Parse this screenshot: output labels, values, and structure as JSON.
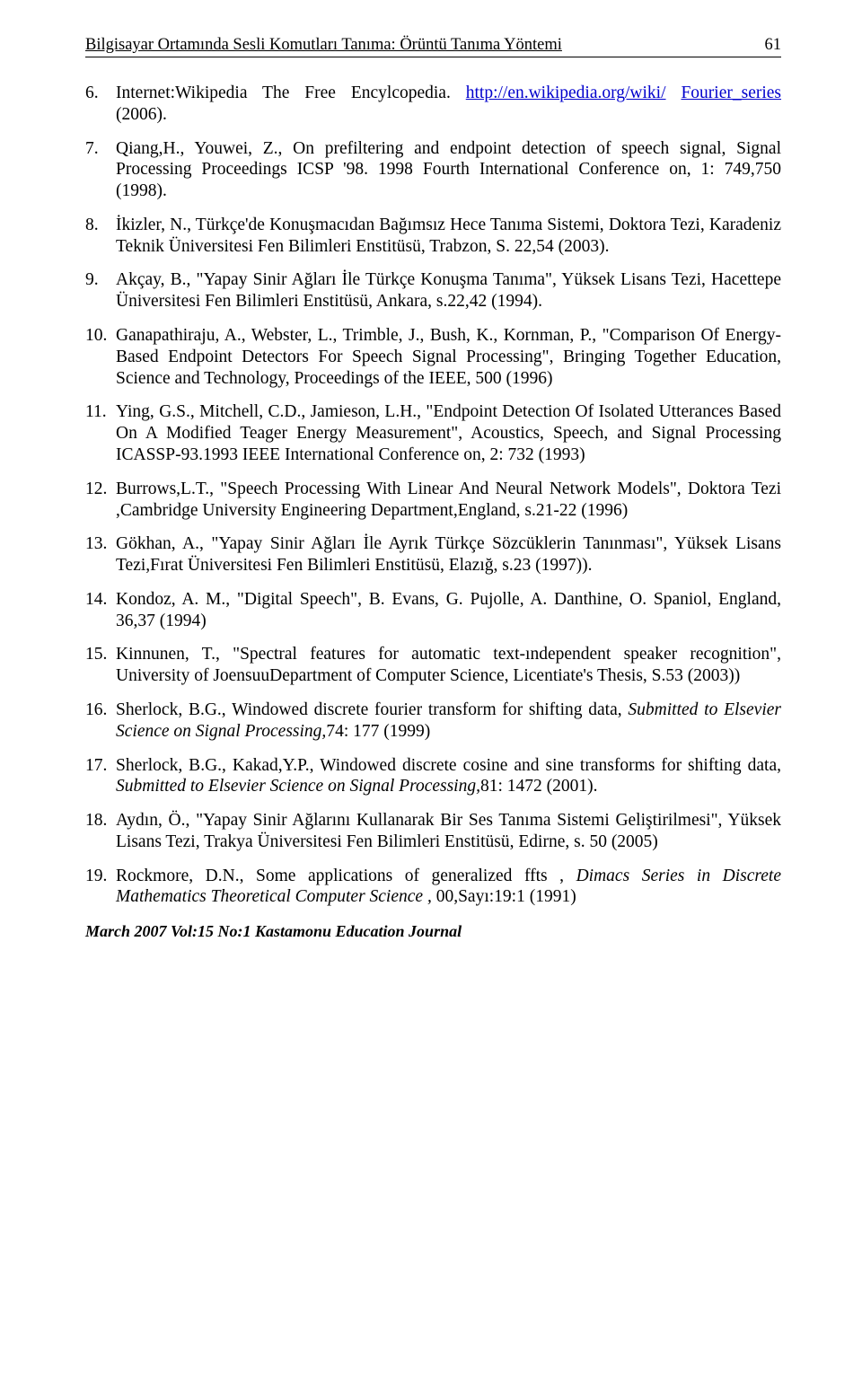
{
  "header": {
    "title": "Bilgisayar Ortamında Sesli Komutları Tanıma: Örüntü Tanıma Yöntemi",
    "page_number": "61"
  },
  "refs": [
    {
      "pre": "Internet:Wikipedia The Free Encylcopedia. ",
      "link1_text": "http://en.wikipedia.org/wiki/",
      "link2_text": "Fourier_series ",
      "post": "(2006)."
    },
    {
      "text": "Qiang,H., Youwei, Z., On prefiltering and endpoint detection of speech signal, Signal Processing Proceedings ICSP '98. 1998 Fourth International Conference on, 1: 749,750 (1998)."
    },
    {
      "text": "İkizler, N., Türkçe'de Konuşmacıdan Bağımsız Hece Tanıma Sistemi, Doktora Tezi, Karadeniz Teknik Üniversitesi Fen Bilimleri Enstitüsü, Trabzon, S. 22,54 (2003)."
    },
    {
      "text": "Akçay, B., \"Yapay Sinir Ağları İle Türkçe Konuşma Tanıma\", Yüksek Lisans Tezi, Hacettepe Üniversitesi Fen Bilimleri Enstitüsü, Ankara, s.22,42 (1994)."
    },
    {
      "text": "Ganapathiraju, A., Webster, L., Trimble, J., Bush, K., Kornman, P., \"Comparison Of Energy-Based Endpoint Detectors For Speech Signal Processing\", Bringing Together Education, Science and Technology, Proceedings of the IEEE, 500 (1996)"
    },
    {
      "text": "Ying, G.S., Mitchell, C.D., Jamieson, L.H., \"Endpoint Detection Of Isolated Utterances Based On A Modified Teager Energy Measurement\", Acoustics, Speech, and Signal Processing  ICASSP-93.1993 IEEE International Conference on, 2: 732 (1993)"
    },
    {
      "text": "Burrows,L.T., \"Speech Processing With Linear And Neural Network Models\", Doktora Tezi ,Cambridge University Engineering Department,England, s.21-22 (1996)"
    },
    {
      "text": "Gökhan, A., \"Yapay Sinir Ağları İle Ayrık Türkçe Sözcüklerin Tanınması\", Yüksek Lisans Tezi,Fırat Üniversitesi Fen Bilimleri Enstitüsü, Elazığ, s.23 (1997))."
    },
    {
      "text": "Kondoz, A. M., \"Digital Speech\", B. Evans, G. Pujolle, A. Danthine, O. Spaniol, England, 36,37 (1994)"
    },
    {
      "text": "Kinnunen, T., \"Spectral features for automatic text-ındependent speaker recognition\", University of JoensuuDepartment of Computer Science, Licentiate's Thesis, S.53 (2003))"
    },
    {
      "pre": "Sherlock, B.G., Windowed discrete fourier transform for shifting data, ",
      "italic": "Submitted to Elsevier Science on Signal Processing,",
      "post": "74: 177 (1999)"
    },
    {
      "pre": "Sherlock, B.G., Kakad,Y.P., Windowed discrete cosine and sine transforms for shifting data, ",
      "italic": "Submitted to Elsevier Science on Signal Processing,",
      "post": "81: 1472 (2001)."
    },
    {
      "text": "Aydın, Ö., \"Yapay Sinir Ağlarını Kullanarak Bir Ses Tanıma Sistemi Geliştirilmesi\", Yüksek Lisans Tezi, Trakya Üniversitesi Fen Bilimleri Enstitüsü, Edirne, s. 50 (2005)"
    },
    {
      "pre": "Rockmore, D.N., Some applications of  generalized ffts , ",
      "italic": "Dimacs Series in Discrete Mathematics Theoretical  Computer Science , ",
      "post": "00,Sayı:19:1 (1991)"
    }
  ],
  "footer": "March 2007  Vol:15  No:1  Kastamonu Education Journal"
}
